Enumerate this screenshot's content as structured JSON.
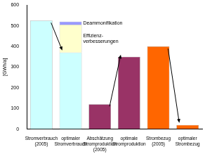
{
  "chart_data": {
    "type": "bar",
    "stacked": true,
    "y_label": "[GWh/a]",
    "categories": [
      "Stromverbrauch (2005)",
      "optimaler Stromverbrauch",
      "Abschätzung Stromproduktion (2005)",
      "optimale Stromproduktion",
      "Strombezug (2005)",
      "optimaler Strombezug"
    ],
    "series": [
      {
        "colors": [
          "#ccffff",
          "#ccffff",
          "#993366",
          "#993366",
          "#ff6600",
          "#ff6600"
        ],
        "values": [
          525,
          370,
          120,
          350,
          400,
          20
        ]
      },
      {
        "name": "Effizienz-verbesserungen",
        "color": "#ffffcc",
        "values": [
          null,
          135,
          null,
          null,
          null,
          null
        ]
      },
      {
        "name": "Deammonifikation",
        "color": "#9999ff",
        "values": [
          null,
          15,
          null,
          null,
          null,
          null
        ]
      }
    ],
    "ylim": [
      0,
      600
    ],
    "yticks": [
      0,
      100,
      200,
      300,
      400,
      500,
      600
    ],
    "grid": false
  }
}
